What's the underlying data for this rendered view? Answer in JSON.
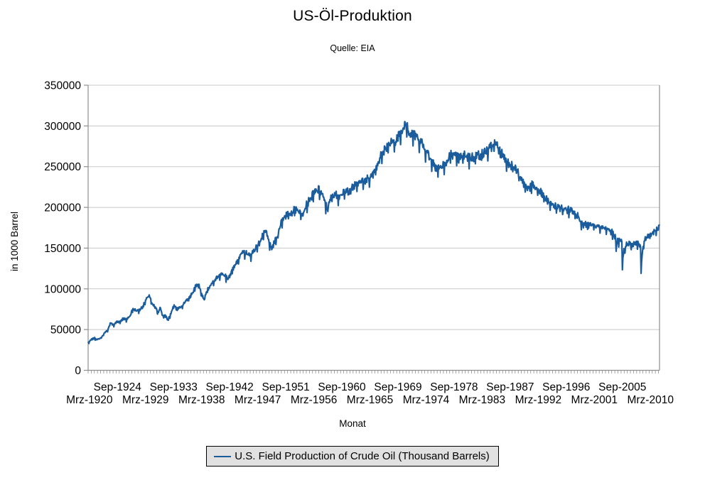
{
  "chart_data": {
    "type": "line",
    "title": "US-Öl-Produktion",
    "subtitle": "Quelle: EIA",
    "xlabel": "Monat",
    "ylabel": "in 1000 Barrel",
    "legend": {
      "label": "U.S. Field Production of Crude Oil (Thousand Barrels)",
      "position": "bottom",
      "color": "#1b5c9c"
    },
    "grid": "horizontal",
    "line_color": "#1b5c9c",
    "axis_color": "#8e8e8e",
    "grid_color": "#c8c8c8",
    "ylim": [
      0,
      350000
    ],
    "yticks": [
      0,
      50000,
      100000,
      150000,
      200000,
      250000,
      300000,
      350000
    ],
    "x_start": "1920-01",
    "x_end": "2011-08",
    "x_minor_tick_every_months": 6,
    "x_row1": {
      "start_month_index": 56,
      "step": 108,
      "labels": [
        "Sep-1924",
        "Sep-1933",
        "Sep-1942",
        "Sep-1951",
        "Sep-1960",
        "Sep-1969",
        "Sep-1978",
        "Sep-1987",
        "Sep-1996",
        "Sep-2005"
      ]
    },
    "x_row2": {
      "start_month_index": 2,
      "step": 108,
      "labels": [
        "Mrz-1920",
        "Mrz-1929",
        "Mrz-1938",
        "Mrz-1947",
        "Mrz-1956",
        "Mrz-1965",
        "Mrz-1974",
        "Mrz-1983",
        "Mrz-1992",
        "Mrz-2001",
        "Mrz-2010"
      ]
    },
    "unit": "thousand barrels per month",
    "anchor_points_year_value": [
      [
        1920.0,
        33500
      ],
      [
        1920.5,
        37500
      ],
      [
        1921.0,
        39500
      ],
      [
        1921.5,
        37500
      ],
      [
        1922.0,
        39500
      ],
      [
        1922.6,
        45000
      ],
      [
        1923.1,
        49000
      ],
      [
        1923.6,
        58000
      ],
      [
        1924.1,
        55500
      ],
      [
        1924.6,
        59500
      ],
      [
        1925.1,
        59500
      ],
      [
        1925.6,
        63500
      ],
      [
        1926.1,
        62000
      ],
      [
        1926.7,
        66500
      ],
      [
        1927.2,
        75500
      ],
      [
        1927.7,
        73000
      ],
      [
        1928.2,
        73500
      ],
      [
        1928.8,
        78500
      ],
      [
        1929.4,
        88000
      ],
      [
        1929.8,
        92000
      ],
      [
        1930.2,
        82000
      ],
      [
        1930.7,
        77500
      ],
      [
        1931.2,
        71500
      ],
      [
        1931.6,
        76500
      ],
      [
        1932.0,
        65500
      ],
      [
        1932.4,
        67000
      ],
      [
        1932.8,
        61500
      ],
      [
        1933.3,
        70000
      ],
      [
        1933.8,
        79500
      ],
      [
        1934.3,
        75000
      ],
      [
        1934.8,
        77000
      ],
      [
        1935.3,
        81000
      ],
      [
        1935.8,
        86500
      ],
      [
        1936.3,
        89500
      ],
      [
        1936.8,
        95500
      ],
      [
        1937.4,
        106500
      ],
      [
        1937.9,
        102000
      ],
      [
        1938.3,
        91000
      ],
      [
        1938.6,
        86000
      ],
      [
        1939.1,
        98500
      ],
      [
        1939.6,
        104000
      ],
      [
        1940.1,
        108000
      ],
      [
        1940.6,
        112500
      ],
      [
        1941.1,
        115000
      ],
      [
        1941.6,
        118000
      ],
      [
        1942.0,
        115500
      ],
      [
        1942.4,
        112000
      ],
      [
        1943.0,
        120500
      ],
      [
        1943.5,
        127500
      ],
      [
        1944.0,
        136000
      ],
      [
        1944.5,
        141500
      ],
      [
        1945.0,
        144500
      ],
      [
        1945.5,
        143000
      ],
      [
        1946.0,
        140000
      ],
      [
        1946.5,
        146000
      ],
      [
        1947.0,
        150500
      ],
      [
        1947.5,
        156500
      ],
      [
        1948.0,
        164500
      ],
      [
        1948.5,
        170500
      ],
      [
        1949.0,
        158000
      ],
      [
        1949.4,
        147500
      ],
      [
        1950.0,
        158500
      ],
      [
        1950.5,
        167000
      ],
      [
        1951.0,
        182500
      ],
      [
        1951.5,
        189000
      ],
      [
        1952.0,
        190500
      ],
      [
        1952.5,
        192000
      ],
      [
        1953.0,
        196000
      ],
      [
        1953.5,
        198500
      ],
      [
        1954.0,
        192000
      ],
      [
        1954.5,
        193500
      ],
      [
        1955.0,
        202500
      ],
      [
        1955.5,
        208000
      ],
      [
        1956.0,
        214500
      ],
      [
        1956.5,
        219000
      ],
      [
        1957.0,
        221000
      ],
      [
        1957.5,
        216500
      ],
      [
        1958.0,
        205000
      ],
      [
        1958.4,
        197500
      ],
      [
        1959.0,
        212000
      ],
      [
        1959.5,
        216000
      ],
      [
        1960.0,
        213500
      ],
      [
        1960.5,
        215500
      ],
      [
        1961.0,
        216500
      ],
      [
        1961.5,
        219500
      ],
      [
        1962.0,
        221500
      ],
      [
        1962.5,
        224000
      ],
      [
        1963.0,
        227500
      ],
      [
        1963.5,
        231000
      ],
      [
        1964.0,
        231500
      ],
      [
        1964.5,
        233500
      ],
      [
        1965.0,
        235500
      ],
      [
        1965.5,
        238500
      ],
      [
        1966.0,
        246000
      ],
      [
        1966.5,
        254000
      ],
      [
        1967.0,
        263000
      ],
      [
        1967.5,
        270000
      ],
      [
        1968.0,
        274500
      ],
      [
        1968.5,
        278000
      ],
      [
        1969.0,
        278500
      ],
      [
        1969.5,
        283500
      ],
      [
        1970.0,
        288000
      ],
      [
        1970.4,
        293000
      ],
      [
        1970.708,
        298000
      ],
      [
        1970.875,
        310500
      ],
      [
        1971.04,
        296000
      ],
      [
        1971.21,
        302000
      ],
      [
        1971.5,
        289000
      ],
      [
        1971.9,
        290000
      ],
      [
        1972.5,
        288000
      ],
      [
        1973.0,
        283500
      ],
      [
        1973.5,
        279000
      ],
      [
        1974.0,
        271500
      ],
      [
        1974.5,
        266000
      ],
      [
        1975.0,
        258000
      ],
      [
        1975.5,
        253000
      ],
      [
        1976.0,
        247500
      ],
      [
        1976.5,
        248500
      ],
      [
        1977.0,
        250500
      ],
      [
        1977.5,
        253500
      ],
      [
        1978.0,
        262000
      ],
      [
        1978.5,
        266000
      ],
      [
        1979.0,
        261000
      ],
      [
        1979.5,
        259500
      ],
      [
        1980.0,
        261500
      ],
      [
        1980.5,
        263000
      ],
      [
        1981.0,
        261000
      ],
      [
        1981.5,
        260500
      ],
      [
        1982.0,
        262000
      ],
      [
        1982.5,
        264000
      ],
      [
        1983.0,
        264500
      ],
      [
        1983.5,
        265500
      ],
      [
        1984.0,
        269500
      ],
      [
        1984.5,
        272500
      ],
      [
        1985.0,
        276000
      ],
      [
        1985.3,
        278000
      ],
      [
        1985.8,
        272500
      ],
      [
        1986.3,
        266000
      ],
      [
        1986.8,
        260000
      ],
      [
        1987.3,
        255500
      ],
      [
        1987.8,
        252500
      ],
      [
        1988.3,
        249000
      ],
      [
        1988.8,
        244500
      ],
      [
        1989.3,
        235500
      ],
      [
        1989.8,
        229500
      ],
      [
        1990.3,
        224500
      ],
      [
        1990.8,
        224000
      ],
      [
        1991.3,
        227000
      ],
      [
        1991.8,
        223000
      ],
      [
        1992.3,
        219500
      ],
      [
        1992.8,
        216500
      ],
      [
        1993.3,
        211000
      ],
      [
        1993.8,
        206500
      ],
      [
        1994.3,
        204000
      ],
      [
        1994.8,
        201500
      ],
      [
        1995.3,
        200000
      ],
      [
        1995.8,
        198500
      ],
      [
        1996.3,
        198000
      ],
      [
        1996.8,
        196500
      ],
      [
        1997.3,
        196500
      ],
      [
        1997.8,
        196000
      ],
      [
        1998.3,
        192000
      ],
      [
        1998.8,
        186500
      ],
      [
        1999.3,
        178500
      ],
      [
        1999.8,
        178000
      ],
      [
        2000.3,
        178000
      ],
      [
        2000.8,
        177000
      ],
      [
        2001.3,
        177000
      ],
      [
        2001.8,
        175500
      ],
      [
        2002.3,
        175000
      ],
      [
        2002.8,
        174000
      ],
      [
        2003.3,
        173000
      ],
      [
        2003.8,
        171000
      ],
      [
        2004.3,
        166500
      ],
      [
        2004.63,
        162000
      ],
      [
        2004.708,
        149000
      ],
      [
        2004.79,
        155000
      ],
      [
        2005.0,
        159000
      ],
      [
        2005.29,
        161000
      ],
      [
        2005.63,
        158000
      ],
      [
        2005.708,
        126000
      ],
      [
        2005.79,
        136000
      ],
      [
        2005.96,
        146000
      ],
      [
        2006.2,
        152500
      ],
      [
        2006.6,
        155000
      ],
      [
        2007.1,
        153500
      ],
      [
        2007.6,
        155500
      ],
      [
        2008.1,
        155500
      ],
      [
        2008.63,
        152000
      ],
      [
        2008.708,
        118000
      ],
      [
        2008.79,
        133000
      ],
      [
        2008.96,
        148000
      ],
      [
        2009.2,
        159000
      ],
      [
        2009.6,
        163500
      ],
      [
        2010.1,
        166500
      ],
      [
        2010.6,
        168500
      ],
      [
        2011.1,
        171000
      ],
      [
        2011.54,
        176000
      ]
    ],
    "noise": {
      "seed": 7,
      "amplitude_fraction": 0.016,
      "month_length_weight": 0.55
    }
  }
}
